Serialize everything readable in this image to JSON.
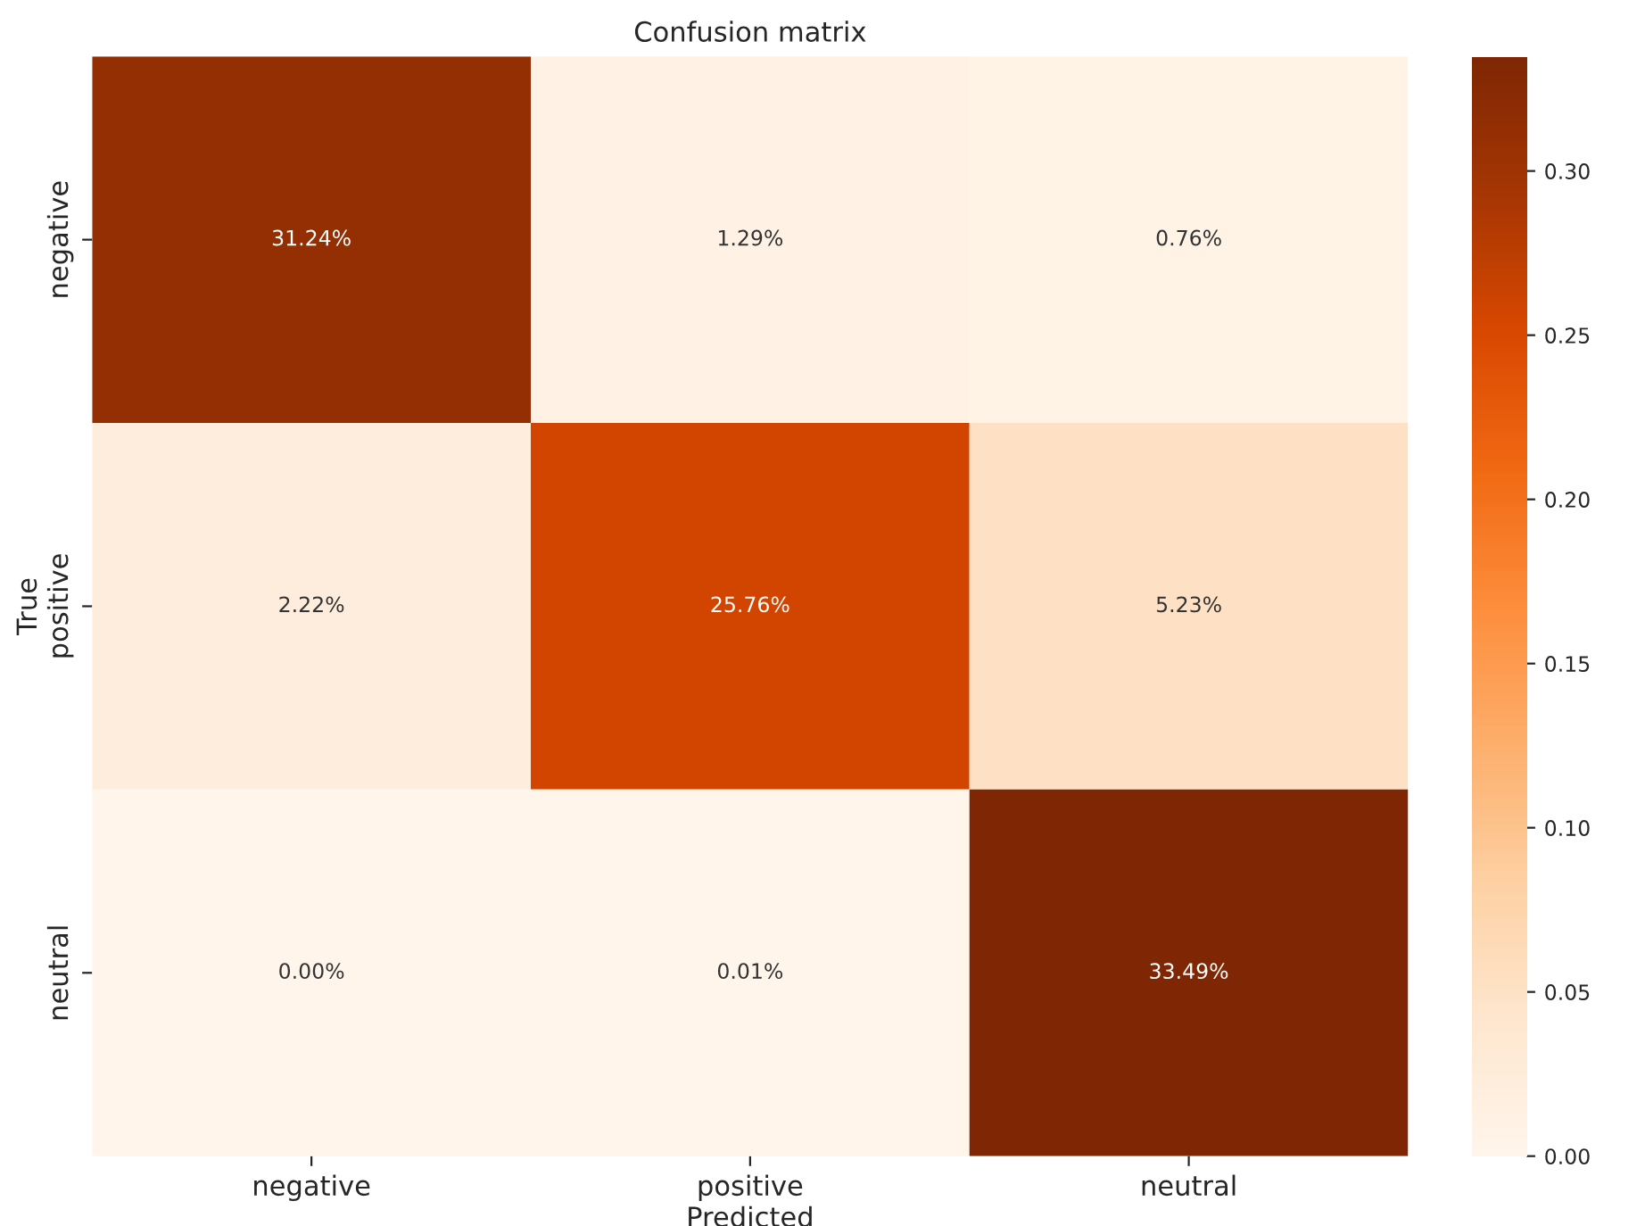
{
  "chart_data": {
    "type": "heatmap",
    "title": "Confusion matrix",
    "xlabel": "Predicted",
    "ylabel": "True",
    "categories": [
      "negative",
      "positive",
      "neutral"
    ],
    "y_categories": [
      "negative",
      "positive",
      "neutral"
    ],
    "cells": [
      [
        0.3124,
        0.0129,
        0.0076
      ],
      [
        0.0222,
        0.2576,
        0.0523
      ],
      [
        0.0,
        0.0001,
        0.3349
      ]
    ],
    "cell_labels": [
      [
        "31.24%",
        "1.29%",
        "0.76%"
      ],
      [
        "2.22%",
        "25.76%",
        "5.23%"
      ],
      [
        "0.00%",
        "0.01%",
        "33.49%"
      ]
    ],
    "clim": [
      0,
      0.3349
    ],
    "cticks": [
      {
        "value": 0,
        "label": "0.00"
      },
      {
        "value": 0.05,
        "label": "0.05"
      },
      {
        "value": 0.1,
        "label": "0.10"
      },
      {
        "value": 0.15,
        "label": "0.15"
      },
      {
        "value": 0.2,
        "label": "0.20"
      },
      {
        "value": 0.25,
        "label": "0.25"
      },
      {
        "value": 0.3,
        "label": "0.30"
      }
    ]
  }
}
